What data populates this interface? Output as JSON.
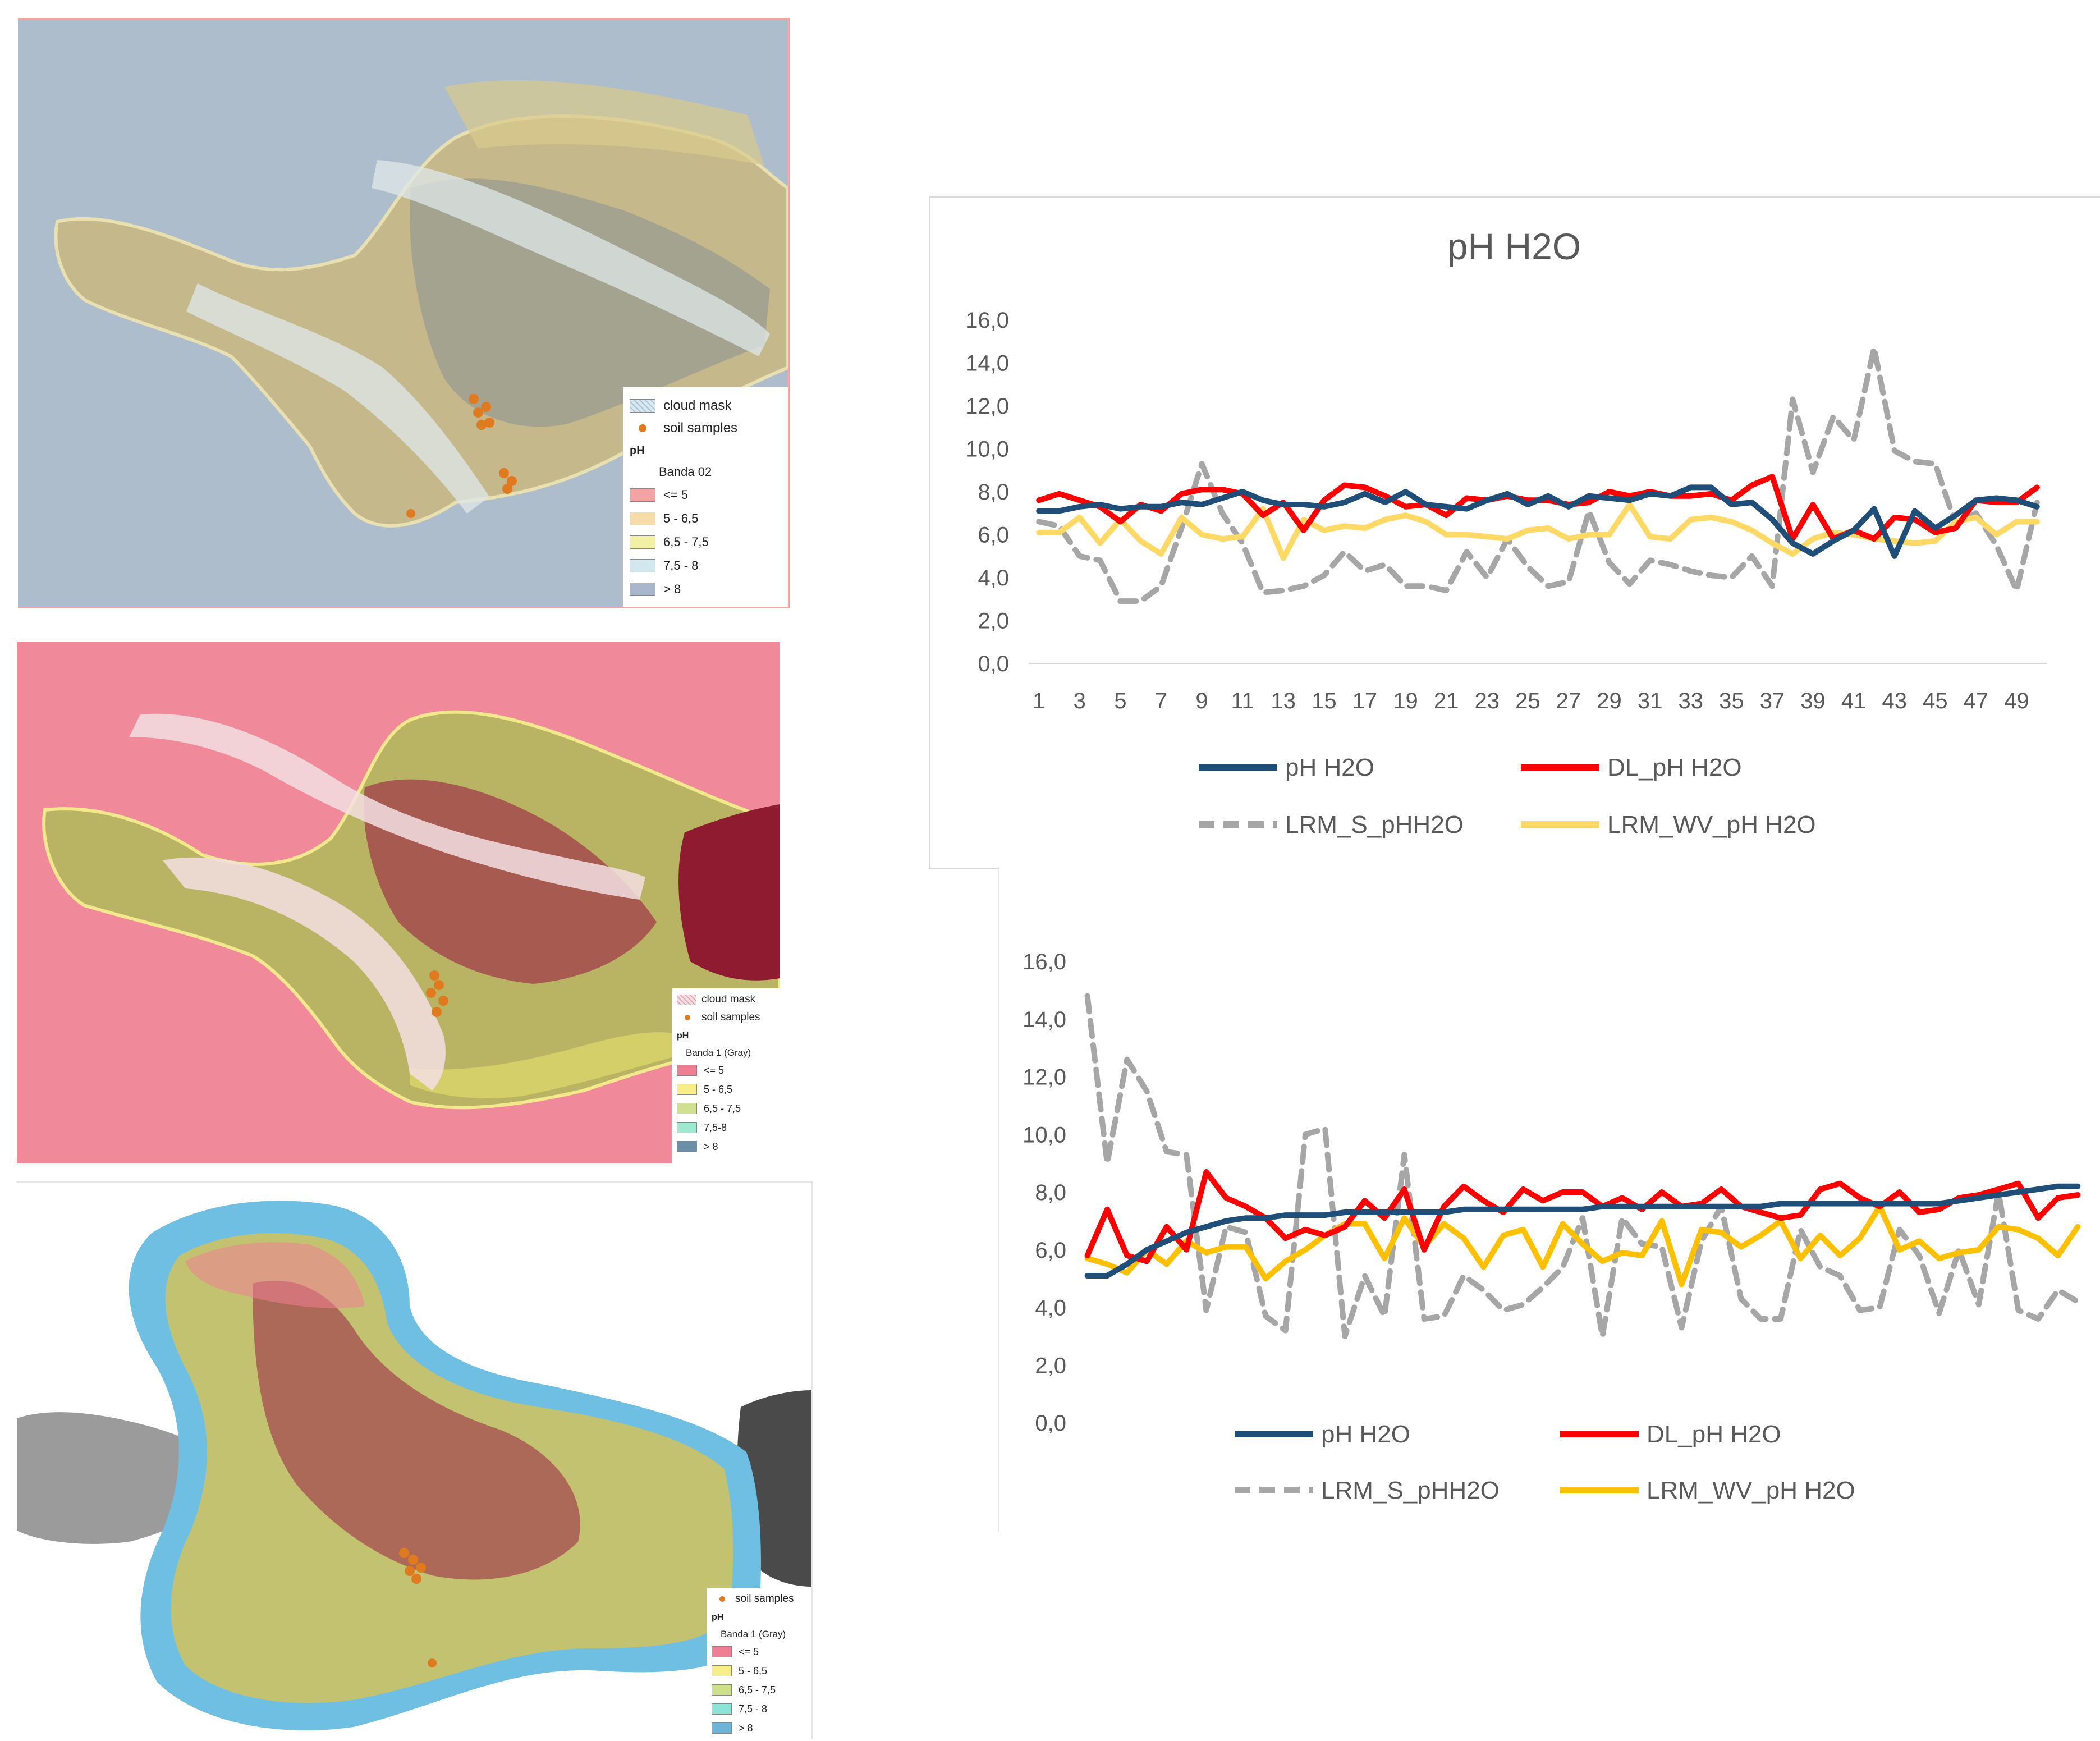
{
  "maps": [
    {
      "legend": {
        "mask_label": "cloud mask",
        "samples_label": "soil samples",
        "variable_label": "pH",
        "band_label": "Banda 02",
        "classes": [
          "<= 5",
          "5 - 6,5",
          "6,5 - 7,5",
          "7,5 - 8",
          "> 8"
        ],
        "class_colors": [
          "#f4a3a3",
          "#f6dca8",
          "#f1f0a4",
          "#d3e7ef",
          "#a9b6cc"
        ]
      },
      "colors": {
        "sea": "#aebdcb",
        "land": "#c5b88a",
        "mask": "#dfe8ea"
      }
    },
    {
      "legend": {
        "mask_label": "cloud mask",
        "samples_label": "soil samples",
        "variable_label": "pH",
        "band_label": "Banda 1 (Gray)",
        "classes": [
          "<= 5",
          "5 - 6,5",
          "6,5 - 7,5",
          "7,5-8",
          "> 8"
        ],
        "class_colors": [
          "#ee7f92",
          "#f7ee8a",
          "#cfe090",
          "#9ee9cf",
          "#6b8fa6"
        ]
      },
      "colors": {
        "sea": "#f0899a",
        "land": "#b8b464",
        "mask": "#f3dfe2"
      }
    },
    {
      "legend": {
        "samples_label": "soil samples",
        "variable_label": "pH",
        "band_label": "Banda 1 (Gray)",
        "classes": [
          "<= 5",
          "5 - 6,5",
          "6,5 - 7,5",
          "7,5 - 8",
          "> 8"
        ],
        "class_colors": [
          "#ef7f95",
          "#f6ee88",
          "#cde08c",
          "#8de3d6",
          "#6cb5d9"
        ]
      },
      "colors": {
        "sea": "#6fbfe3",
        "land": "#c3c270"
      }
    }
  ],
  "chart_data": [
    {
      "type": "line",
      "title": "pH H2O",
      "x": [
        1,
        2,
        3,
        4,
        5,
        6,
        7,
        8,
        9,
        10,
        11,
        12,
        13,
        14,
        15,
        16,
        17,
        18,
        19,
        20,
        21,
        22,
        23,
        24,
        25,
        26,
        27,
        28,
        29,
        30,
        31,
        32,
        33,
        34,
        35,
        36,
        37,
        38,
        39,
        40,
        41,
        42,
        43,
        44,
        45,
        46,
        47,
        48,
        49,
        50
      ],
      "x_tick_labels": [
        "1",
        "3",
        "5",
        "7",
        "9",
        "11",
        "13",
        "15",
        "17",
        "19",
        "21",
        "23",
        "25",
        "27",
        "29",
        "31",
        "33",
        "35",
        "37",
        "39",
        "41",
        "43",
        "45",
        "47",
        "49"
      ],
      "y_tick_labels": [
        "0,0",
        "2,0",
        "4,0",
        "6,0",
        "8,0",
        "10,0",
        "12,0",
        "14,0",
        "16,0"
      ],
      "ylim": [
        0,
        16
      ],
      "legend_position": "bottom",
      "series": [
        {
          "name": "pH H2O",
          "color": "#1f4e79",
          "dash": "solid",
          "values": [
            7.1,
            7.1,
            7.3,
            7.4,
            7.2,
            7.3,
            7.3,
            7.5,
            7.4,
            7.7,
            8.0,
            7.6,
            7.4,
            7.4,
            7.3,
            7.5,
            7.9,
            7.5,
            8.0,
            7.4,
            7.3,
            7.2,
            7.6,
            7.9,
            7.4,
            7.8,
            7.3,
            7.8,
            7.7,
            7.6,
            7.9,
            7.8,
            8.2,
            8.2,
            7.4,
            7.5,
            6.7,
            5.6,
            5.1,
            5.7,
            6.2,
            7.2,
            5.0,
            7.1,
            6.3,
            6.9,
            7.6,
            7.7,
            7.6,
            7.3
          ]
        },
        {
          "name": "DL_pH H2O",
          "color": "#ff0000",
          "dash": "solid",
          "values": [
            7.6,
            7.9,
            7.6,
            7.3,
            6.6,
            7.4,
            7.1,
            7.9,
            8.1,
            8.1,
            7.9,
            6.9,
            7.5,
            6.2,
            7.6,
            8.3,
            8.2,
            7.8,
            7.3,
            7.4,
            6.9,
            7.7,
            7.6,
            7.8,
            7.6,
            7.6,
            7.4,
            7.5,
            8.0,
            7.8,
            8.0,
            7.8,
            7.8,
            7.9,
            7.6,
            8.3,
            8.7,
            5.8,
            7.4,
            5.8,
            6.2,
            5.8,
            6.8,
            6.7,
            6.1,
            6.3,
            7.6,
            7.5,
            7.5,
            8.2
          ]
        },
        {
          "name": "LRM_S_pHH2O",
          "color": "#a6a6a6",
          "dash": "dashed",
          "values": [
            6.6,
            6.4,
            5.0,
            4.8,
            2.9,
            2.9,
            3.6,
            6.3,
            9.3,
            7.0,
            5.6,
            3.3,
            3.4,
            3.6,
            4.1,
            5.2,
            4.3,
            4.6,
            3.6,
            3.6,
            3.4,
            5.2,
            4.0,
            5.8,
            4.5,
            3.6,
            3.8,
            7.1,
            4.7,
            3.7,
            4.8,
            4.6,
            4.3,
            4.1,
            4.0,
            5.0,
            3.6,
            12.3,
            8.9,
            11.5,
            10.4,
            14.7,
            9.9,
            9.4,
            9.3,
            6.5,
            7.0,
            5.5,
            3.4,
            7.5
          ]
        },
        {
          "name": "LRM_WV_pH H2O",
          "color": "#ffd966",
          "dash": "solid",
          "values": [
            6.1,
            6.1,
            6.8,
            5.6,
            6.7,
            5.7,
            5.1,
            6.8,
            6.0,
            5.8,
            5.9,
            7.2,
            4.9,
            6.7,
            6.2,
            6.4,
            6.3,
            6.7,
            6.9,
            6.6,
            6.0,
            6.0,
            5.9,
            5.8,
            6.2,
            6.3,
            5.8,
            6.0,
            6.0,
            7.4,
            5.9,
            5.8,
            6.7,
            6.8,
            6.6,
            6.2,
            5.6,
            5.1,
            5.8,
            6.1,
            6.0,
            5.8,
            5.7,
            5.6,
            5.7,
            6.6,
            6.8,
            6.0,
            6.6,
            6.6
          ]
        }
      ]
    },
    {
      "type": "line",
      "title": "",
      "x": [
        1,
        2,
        3,
        4,
        5,
        6,
        7,
        8,
        9,
        10,
        11,
        12,
        13,
        14,
        15,
        16,
        17,
        18,
        19,
        20,
        21,
        22,
        23,
        24,
        25,
        26,
        27,
        28,
        29,
        30,
        31,
        32,
        33,
        34,
        35,
        36,
        37,
        38,
        39,
        40,
        41,
        42,
        43,
        44,
        45,
        46,
        47,
        48,
        49,
        50,
        51
      ],
      "y_tick_labels": [
        "0,0",
        "2,0",
        "4,0",
        "6,0",
        "8,0",
        "10,0",
        "12,0",
        "14,0",
        "16,0"
      ],
      "ylim": [
        0,
        16
      ],
      "legend_position": "bottom",
      "series": [
        {
          "name": "pH H2O",
          "color": "#1f4e79",
          "dash": "solid",
          "values": [
            5.1,
            5.1,
            5.5,
            6.0,
            6.3,
            6.6,
            6.8,
            7.0,
            7.1,
            7.1,
            7.2,
            7.2,
            7.2,
            7.3,
            7.3,
            7.3,
            7.3,
            7.3,
            7.3,
            7.4,
            7.4,
            7.4,
            7.4,
            7.4,
            7.4,
            7.4,
            7.5,
            7.5,
            7.5,
            7.5,
            7.5,
            7.5,
            7.5,
            7.5,
            7.5,
            7.6,
            7.6,
            7.6,
            7.6,
            7.6,
            7.6,
            7.6,
            7.6,
            7.6,
            7.7,
            7.8,
            7.9,
            8.0,
            8.1,
            8.2,
            8.2
          ]
        },
        {
          "name": "DL_pH H2O",
          "color": "#ff0000",
          "dash": "solid",
          "values": [
            5.8,
            7.4,
            5.8,
            5.6,
            6.8,
            6.0,
            8.7,
            7.8,
            7.5,
            7.1,
            6.4,
            6.7,
            6.5,
            6.8,
            7.7,
            7.1,
            8.1,
            6.0,
            7.5,
            8.2,
            7.7,
            7.3,
            8.1,
            7.7,
            8.0,
            8.0,
            7.5,
            7.8,
            7.4,
            8.0,
            7.5,
            7.6,
            8.1,
            7.5,
            7.3,
            7.1,
            7.2,
            8.1,
            8.3,
            7.8,
            7.5,
            8.0,
            7.3,
            7.4,
            7.8,
            7.9,
            8.1,
            8.3,
            7.1,
            7.8,
            7.9
          ]
        },
        {
          "name": "LRM_S_pHH2O",
          "color": "#a6a6a6",
          "dash": "dashed",
          "values": [
            14.8,
            9.0,
            12.6,
            11.5,
            9.4,
            9.3,
            3.9,
            6.8,
            6.6,
            3.7,
            3.2,
            10.0,
            10.2,
            3.0,
            5.1,
            3.7,
            9.3,
            3.6,
            3.7,
            5.1,
            4.6,
            3.9,
            4.1,
            4.7,
            5.4,
            7.1,
            3.0,
            7.1,
            6.2,
            6.1,
            3.3,
            6.3,
            7.5,
            4.3,
            3.6,
            3.6,
            6.7,
            5.4,
            5.1,
            3.9,
            4.0,
            6.7,
            5.8,
            3.8,
            6.0,
            4.1,
            8.0,
            3.9,
            3.6,
            4.6,
            4.2
          ]
        },
        {
          "name": "LRM_WV_pH H2O",
          "color": "#ffc000",
          "dash": "solid",
          "values": [
            5.7,
            5.5,
            5.2,
            6.0,
            5.5,
            6.3,
            5.9,
            6.1,
            6.1,
            5.0,
            5.6,
            6.0,
            6.5,
            6.9,
            6.9,
            5.7,
            7.1,
            6.1,
            6.9,
            6.4,
            5.4,
            6.5,
            6.7,
            5.4,
            6.9,
            6.2,
            5.6,
            5.9,
            5.8,
            7.0,
            4.8,
            6.7,
            6.6,
            6.1,
            6.5,
            7.0,
            5.7,
            6.5,
            5.8,
            6.4,
            7.5,
            6.0,
            6.3,
            5.7,
            5.9,
            6.0,
            6.8,
            6.7,
            6.4,
            5.8,
            6.8
          ]
        }
      ]
    }
  ]
}
